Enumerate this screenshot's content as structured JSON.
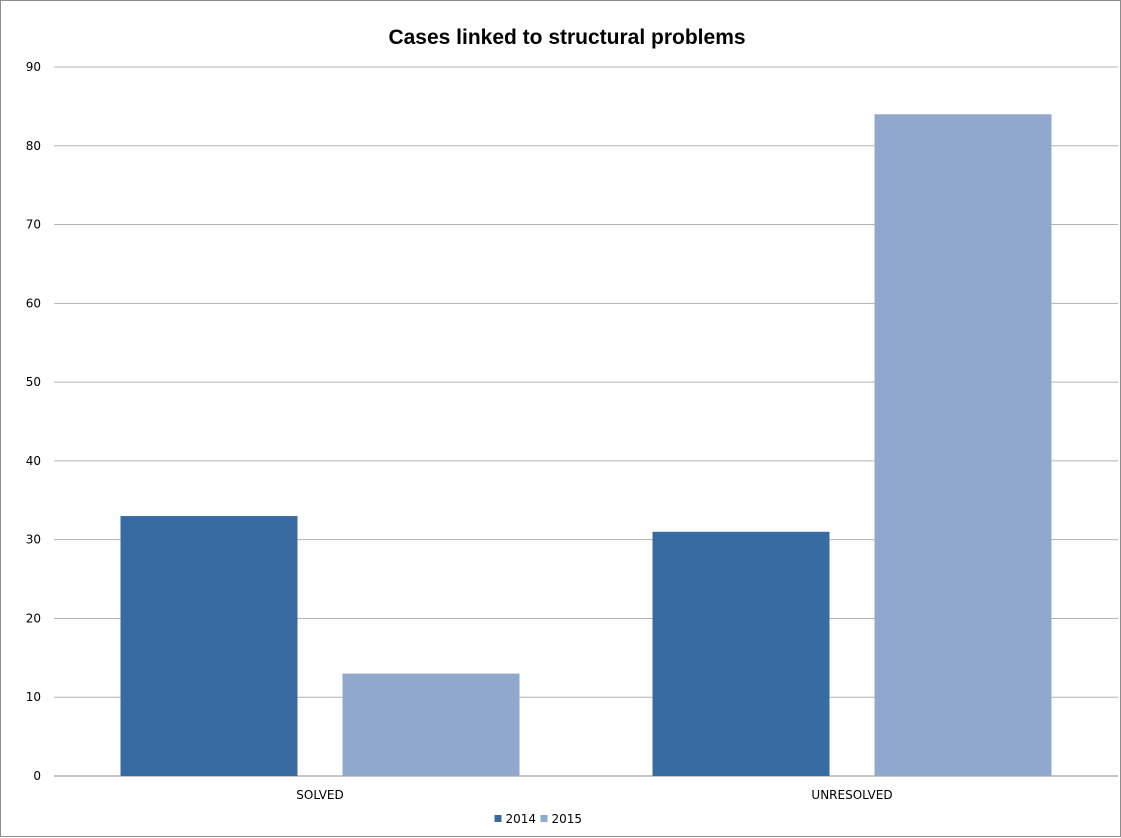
{
  "chart_data": {
    "type": "bar",
    "title": "Cases linked to structural problems",
    "xlabel": "",
    "ylabel": "",
    "categories": [
      "SOLVED",
      "UNRESOLVED"
    ],
    "series": [
      {
        "name": "2014",
        "values": [
          33,
          31
        ],
        "color": "#376ba1"
      },
      {
        "name": "2015",
        "values": [
          13,
          84
        ],
        "color": "#91a8cd"
      }
    ],
    "ylim": [
      0,
      90
    ],
    "yticks": [
      0,
      10,
      20,
      30,
      40,
      50,
      60,
      70,
      80,
      90
    ],
    "grid": true,
    "legend_position": "bottom-center"
  }
}
